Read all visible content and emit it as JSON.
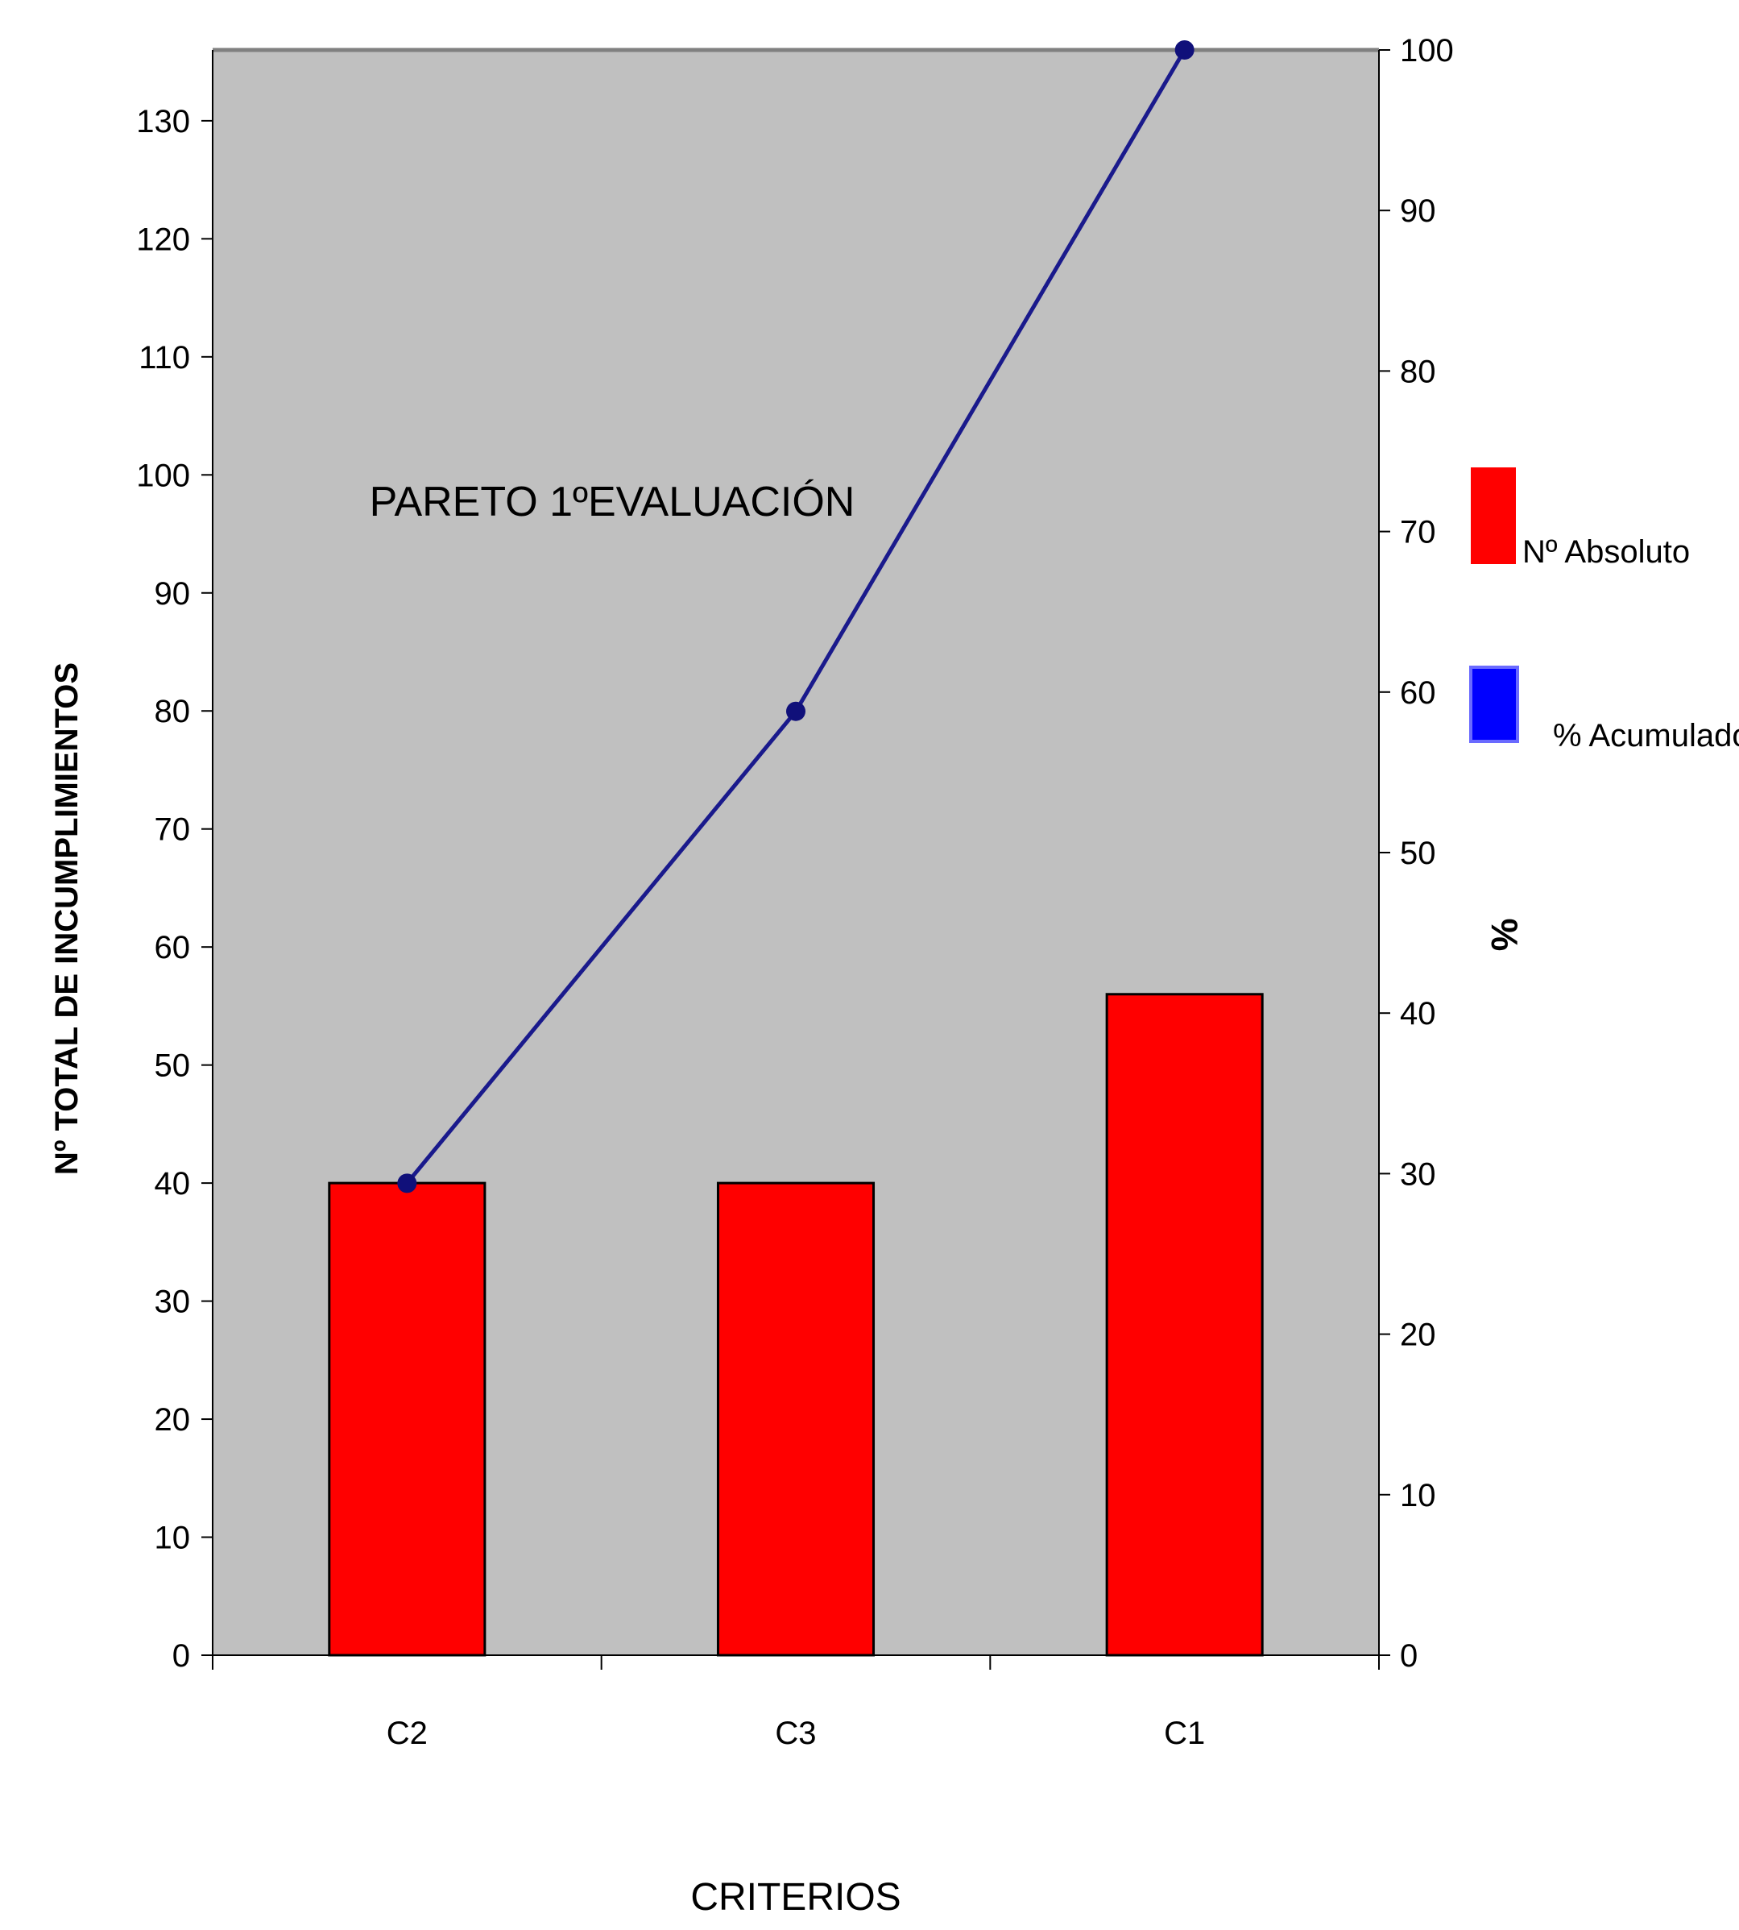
{
  "chart_data": {
    "type": "bar",
    "title": "PARETO   1ºEVALUACIÓN",
    "categories": [
      "C2",
      "C3",
      "C1"
    ],
    "xlabel": "CRITERIOS",
    "ylabel": "Nº  TOTAL  DE INCUMPLIMIENTOS",
    "y2label": "%",
    "ylim": [
      0,
      136
    ],
    "y2lim": [
      0,
      100
    ],
    "yticks": [
      0,
      10,
      20,
      30,
      40,
      50,
      60,
      70,
      80,
      90,
      100,
      110,
      120,
      130
    ],
    "y2ticks": [
      0,
      10,
      20,
      30,
      40,
      50,
      60,
      70,
      80,
      90,
      100
    ],
    "series": [
      {
        "name": "Nº Absoluto",
        "type": "bar",
        "axis": "left",
        "color": "#ff0000",
        "values": [
          40,
          40,
          56
        ]
      },
      {
        "name": "% Acumulado",
        "type": "line",
        "axis": "right",
        "color": "#0000ff",
        "line_color": "#1a1a8c",
        "values": [
          29.4,
          58.8,
          100
        ]
      }
    ],
    "background": "#c0c0c0",
    "grid": false,
    "legend_position": "right"
  }
}
